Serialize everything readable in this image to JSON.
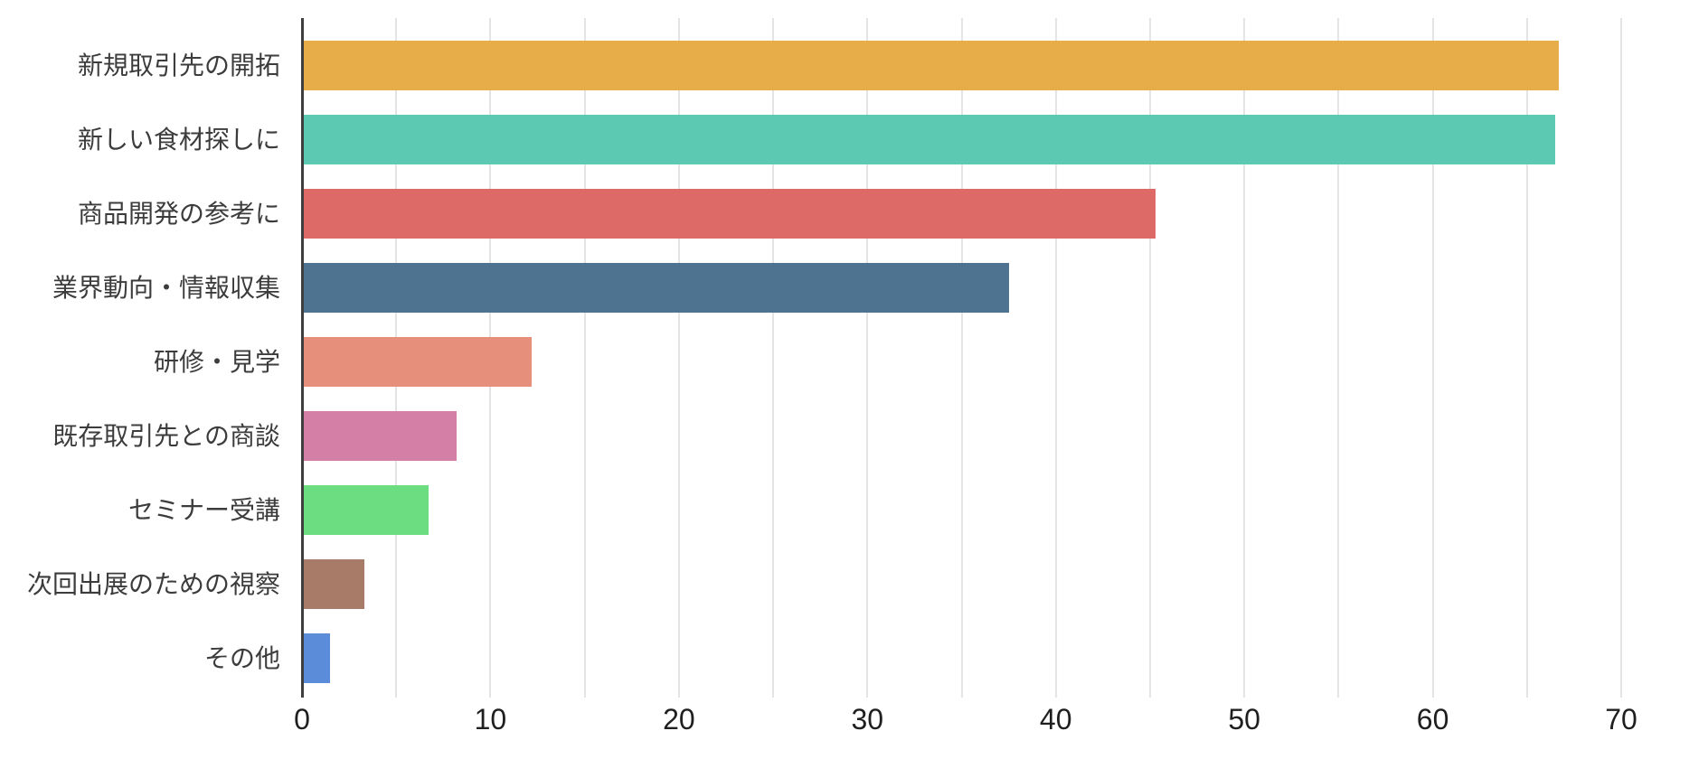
{
  "chart_data": {
    "type": "bar",
    "orientation": "horizontal",
    "title": "",
    "xlabel": "",
    "ylabel": "",
    "categories": [
      "新規取引先の開拓",
      "新しい食材探しに",
      "商品開発の参考に",
      "業界動向・情報収集",
      "研修・見学",
      "既存取引先との商談",
      "セミナー受講",
      "次回出展のための視察",
      "その他"
    ],
    "values": [
      66.6,
      66.4,
      45.2,
      37.4,
      12.1,
      8.1,
      6.6,
      3.2,
      1.4
    ],
    "bar_colors": [
      "#e7ad49",
      "#5cc9b2",
      "#dd6a66",
      "#4d7390",
      "#e68f7b",
      "#d47fa6",
      "#6cdd80",
      "#a87b68",
      "#5b8cd9"
    ],
    "xlim": [
      0,
      70
    ],
    "x_ticks": [
      0,
      10,
      20,
      30,
      40,
      50,
      60,
      70
    ],
    "x_tick_labels": [
      "0",
      "10",
      "20",
      "30",
      "40",
      "50",
      "60",
      "70"
    ],
    "gridline_step": 5,
    "grid": true,
    "legend_position": "none",
    "colors": {
      "axis": "#3f3f3f",
      "gridline": "#e4e4e4",
      "category_label": "#3c3c3c",
      "tick_label": "#1f1f1f",
      "background": "#ffffff"
    }
  }
}
